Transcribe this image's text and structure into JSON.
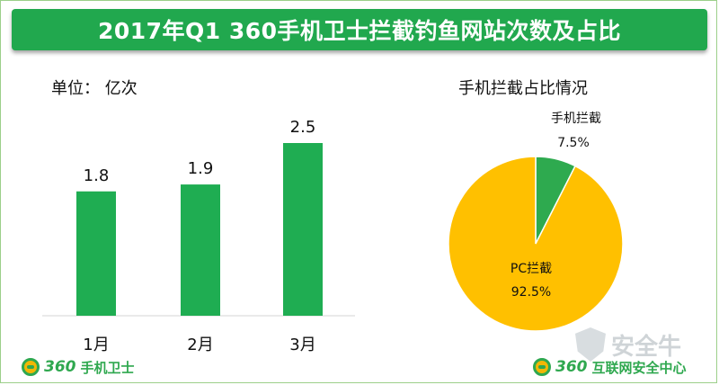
{
  "title": "2017年Q1 360手机卫士拦截钓鱼网站次数及占比",
  "unit_label": "单位： 亿次",
  "pie_title": "手机拦截占比情况",
  "logos": {
    "left_number": "360",
    "left_name": "手机卫士",
    "right_number": "360",
    "right_name": "互联网安全中心"
  },
  "watermark": "安全牛",
  "colors": {
    "title_bar": "#21a84e",
    "bar": "#1fad52",
    "pie_mobile": "#2eaa4f",
    "pie_pc": "#ffc000"
  },
  "chart_data": [
    {
      "type": "bar",
      "categories": [
        "1月",
        "2月",
        "3月"
      ],
      "values": [
        1.8,
        1.9,
        2.5
      ],
      "data_labels": [
        "1.8",
        "1.9",
        "2.5"
      ],
      "ylim": [
        0,
        2.5
      ]
    },
    {
      "type": "pie",
      "slices": [
        {
          "label": "手机拦截",
          "value": 7.5,
          "display": "7.5%"
        },
        {
          "label": "PC拦截",
          "value": 92.5,
          "display": "92.5%"
        }
      ]
    }
  ]
}
